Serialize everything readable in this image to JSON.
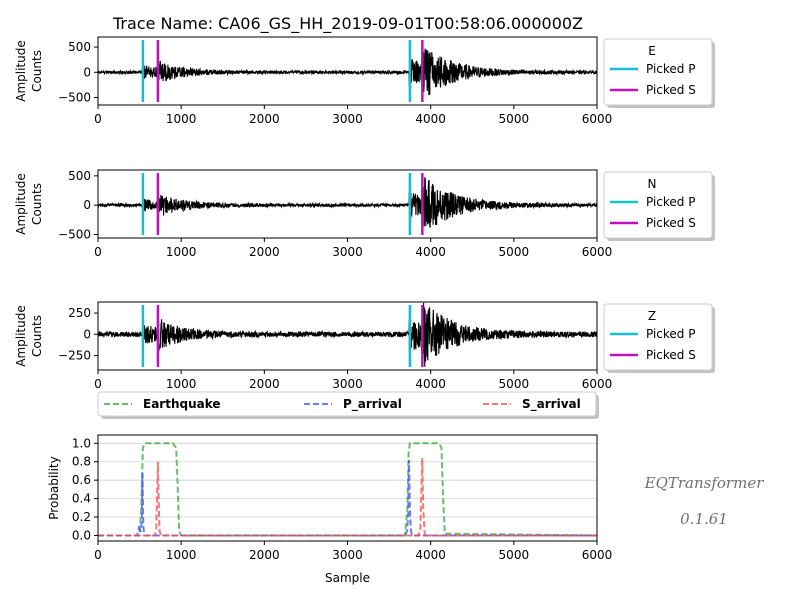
{
  "title": "Trace Name: CA06_GS_HH_2019-09-01T00:58:06.000000Z",
  "watermark": {
    "name": "EQTransformer",
    "version": "0.1.61"
  },
  "colors": {
    "waveform": "#000000",
    "picked_p": "#17BECF",
    "picked_s": "#C011C0",
    "earthquake": "#3aa63a",
    "p_arrival": "#3a4ff5",
    "s_arrival": "#f54a4a",
    "grid": "#d0d0d0"
  },
  "chart_data": [
    {
      "type": "line",
      "component": "E",
      "xlim": [
        0,
        6000
      ],
      "ylim": [
        -650,
        700
      ],
      "x_ticks": [
        "0",
        "1000",
        "2000",
        "3000",
        "4000",
        "5000",
        "6000"
      ],
      "y_ticks": [
        {
          "v": 500,
          "label": "500"
        },
        {
          "v": 0,
          "label": "0"
        },
        {
          "v": -500,
          "label": "−500"
        }
      ],
      "ylabel": [
        "Amplitude",
        "Counts"
      ],
      "legend": {
        "title": "E",
        "items": [
          "Picked P",
          "Picked S"
        ]
      },
      "picked_p": 540,
      "picked_s": 720,
      "picked_p2": 3750,
      "picked_s2": 3900,
      "events": [
        {
          "onset": 540,
          "amp": 120,
          "decay": 260
        },
        {
          "onset": 720,
          "amp": 150,
          "decay": 300
        },
        {
          "onset": 3740,
          "amp": 300,
          "decay": 260
        },
        {
          "onset": 3890,
          "amp": 420,
          "decay": 380
        }
      ],
      "noise": 28
    },
    {
      "type": "line",
      "component": "N",
      "xlim": [
        0,
        6000
      ],
      "ylim": [
        -560,
        600
      ],
      "x_ticks": [
        "0",
        "1000",
        "2000",
        "3000",
        "4000",
        "5000",
        "6000"
      ],
      "y_ticks": [
        {
          "v": 500,
          "label": "500"
        },
        {
          "v": 0,
          "label": "0"
        },
        {
          "v": -500,
          "label": "−500"
        }
      ],
      "ylabel": [
        "Amplitude",
        "Counts"
      ],
      "legend": {
        "title": "N",
        "items": [
          "Picked P",
          "Picked S"
        ]
      },
      "picked_p": 540,
      "picked_s": 720,
      "picked_p2": 3750,
      "picked_s2": 3900,
      "events": [
        {
          "onset": 540,
          "amp": 90,
          "decay": 260
        },
        {
          "onset": 720,
          "amp": 150,
          "decay": 320
        },
        {
          "onset": 3740,
          "amp": 230,
          "decay": 260
        },
        {
          "onset": 3890,
          "amp": 400,
          "decay": 400
        }
      ],
      "noise": 24
    },
    {
      "type": "line",
      "component": "Z",
      "xlim": [
        0,
        6000
      ],
      "ylim": [
        -420,
        380
      ],
      "x_ticks": [
        "0",
        "1000",
        "2000",
        "3000",
        "4000",
        "5000",
        "6000"
      ],
      "y_ticks": [
        {
          "v": 250,
          "label": "250"
        },
        {
          "v": 0,
          "label": "0"
        },
        {
          "v": -250,
          "label": "−250"
        }
      ],
      "ylabel": [
        "Amplitude",
        "Counts"
      ],
      "legend": {
        "title": "Z",
        "items": [
          "Picked P",
          "Picked S"
        ]
      },
      "picked_p": 540,
      "picked_s": 720,
      "picked_p2": 3750,
      "picked_s2": 3900,
      "events": [
        {
          "onset": 540,
          "amp": 110,
          "decay": 260
        },
        {
          "onset": 720,
          "amp": 120,
          "decay": 300
        },
        {
          "onset": 3740,
          "amp": 210,
          "decay": 260
        },
        {
          "onset": 3890,
          "amp": 300,
          "decay": 360
        }
      ],
      "noise": 30
    },
    {
      "type": "line",
      "component": "probability",
      "xlabel": "Sample",
      "ylabel": "Probability",
      "xlim": [
        0,
        6000
      ],
      "ylim": [
        -0.06,
        1.09
      ],
      "x_ticks": [
        "0",
        "1000",
        "2000",
        "3000",
        "4000",
        "5000",
        "6000"
      ],
      "y_ticks": [
        {
          "v": 1.0,
          "label": "1.0"
        },
        {
          "v": 0.8,
          "label": "0.8"
        },
        {
          "v": 0.6,
          "label": "0.6"
        },
        {
          "v": 0.4,
          "label": "0.4"
        },
        {
          "v": 0.2,
          "label": "0.2"
        },
        {
          "v": 0.0,
          "label": "0.0"
        }
      ],
      "grid": true,
      "legend_items": [
        "Earthquake",
        "P_arrival",
        "S_arrival"
      ],
      "series": [
        {
          "name": "Earthquake",
          "x": [
            0,
            500,
            520,
            540,
            560,
            900,
            940,
            960,
            975,
            1000,
            3690,
            3720,
            3735,
            3750,
            3780,
            4100,
            4130,
            4150,
            4170,
            6000
          ],
          "y": [
            0,
            0,
            0.3,
            0.95,
            1.0,
            1.0,
            0.95,
            0.5,
            0.05,
            0,
            0,
            0.3,
            0.9,
            1.0,
            1.0,
            1.0,
            0.95,
            0.4,
            0.02,
            0
          ]
        },
        {
          "name": "P_arrival",
          "x": [
            0,
            470,
            490,
            505,
            515,
            525,
            535,
            545,
            555,
            570,
            590,
            3690,
            3715,
            3730,
            3740,
            3752,
            3765,
            3780,
            6000
          ],
          "y": [
            0,
            0,
            0.08,
            0.05,
            0.05,
            0.15,
            0.68,
            0.1,
            0.02,
            0,
            0,
            0,
            0.05,
            0.2,
            0.82,
            0.25,
            0.04,
            0,
            0
          ]
        },
        {
          "name": "S_arrival",
          "x": [
            0,
            680,
            700,
            712,
            720,
            728,
            740,
            760,
            3850,
            3875,
            3888,
            3898,
            3910,
            3930,
            6000
          ],
          "y": [
            0,
            0,
            0.05,
            0.5,
            0.8,
            0.45,
            0.05,
            0,
            0,
            0.05,
            0.5,
            0.84,
            0.3,
            0,
            0
          ]
        }
      ]
    }
  ]
}
